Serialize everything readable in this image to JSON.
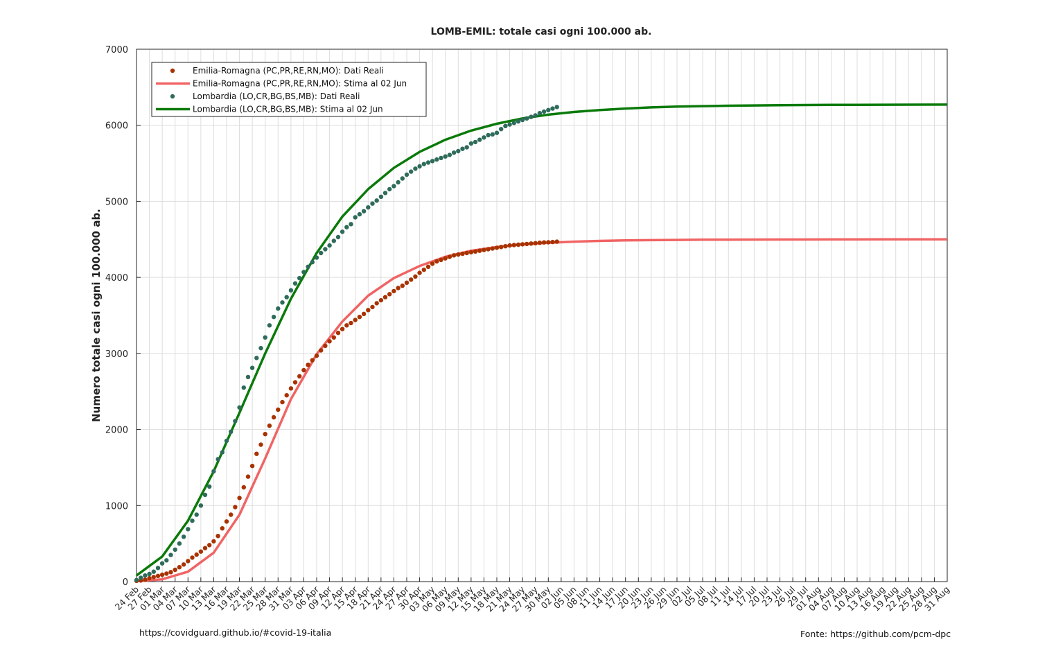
{
  "chart_data": {
    "type": "line",
    "title": "LOMB-EMIL: totale casi ogni 100.000 ab.",
    "ylabel": "Numero totale casi ogni 100.000 ab.",
    "xlabel": "",
    "ylim": [
      0,
      7000
    ],
    "yticks": [
      0,
      1000,
      2000,
      3000,
      4000,
      5000,
      6000,
      7000
    ],
    "xlim": [
      "2020-02-24",
      "2020-08-31"
    ],
    "xtick_labels": [
      "24 Feb",
      "27 Feb",
      "01 Mar",
      "04 Mar",
      "07 Mar",
      "10 Mar",
      "13 Mar",
      "16 Mar",
      "19 Mar",
      "22 Mar",
      "25 Mar",
      "28 Mar",
      "31 Mar",
      "03 Apr",
      "06 Apr",
      "09 Apr",
      "12 Apr",
      "15 Apr",
      "18 Apr",
      "21 Apr",
      "24 Apr",
      "27 Apr",
      "30 Apr",
      "03 May",
      "06 May",
      "09 May",
      "12 May",
      "15 May",
      "18 May",
      "21 May",
      "24 May",
      "27 May",
      "30 May",
      "02 Jun",
      "05 Jun",
      "08 Jun",
      "11 Jun",
      "14 Jun",
      "17 Jun",
      "20 Jun",
      "23 Jun",
      "26 Jun",
      "29 Jun",
      "02 Jul",
      "05 Jul",
      "08 Jul",
      "11 Jul",
      "14 Jul",
      "17 Jul",
      "20 Jul",
      "23 Jul",
      "26 Jul",
      "29 Jul",
      "01 Aug",
      "04 Aug",
      "07 Aug",
      "10 Aug",
      "13 Aug",
      "16 Aug",
      "19 Aug",
      "22 Aug",
      "25 Aug",
      "28 Aug",
      "31 Aug"
    ],
    "grid": true,
    "legend_position": "top-left",
    "series": [
      {
        "name": "Emilia-Romagna (PC,PR,RE,RN,MO): Dati Reali",
        "kind": "points",
        "color": "#a83200",
        "x": [
          "2020-02-24",
          "2020-02-25",
          "2020-02-26",
          "2020-02-27",
          "2020-02-28",
          "2020-02-29",
          "2020-03-01",
          "2020-03-02",
          "2020-03-03",
          "2020-03-04",
          "2020-03-05",
          "2020-03-06",
          "2020-03-07",
          "2020-03-08",
          "2020-03-09",
          "2020-03-10",
          "2020-03-11",
          "2020-03-12",
          "2020-03-13",
          "2020-03-14",
          "2020-03-15",
          "2020-03-16",
          "2020-03-17",
          "2020-03-18",
          "2020-03-19",
          "2020-03-20",
          "2020-03-21",
          "2020-03-22",
          "2020-03-23",
          "2020-03-24",
          "2020-03-25",
          "2020-03-26",
          "2020-03-27",
          "2020-03-28",
          "2020-03-29",
          "2020-03-30",
          "2020-03-31",
          "2020-04-01",
          "2020-04-02",
          "2020-04-03",
          "2020-04-04",
          "2020-04-05",
          "2020-04-06",
          "2020-04-07",
          "2020-04-08",
          "2020-04-09",
          "2020-04-10",
          "2020-04-11",
          "2020-04-12",
          "2020-04-13",
          "2020-04-14",
          "2020-04-15",
          "2020-04-16",
          "2020-04-17",
          "2020-04-18",
          "2020-04-19",
          "2020-04-20",
          "2020-04-21",
          "2020-04-22",
          "2020-04-23",
          "2020-04-24",
          "2020-04-25",
          "2020-04-26",
          "2020-04-27",
          "2020-04-28",
          "2020-04-29",
          "2020-04-30",
          "2020-05-01",
          "2020-05-02",
          "2020-05-03",
          "2020-05-04",
          "2020-05-05",
          "2020-05-06",
          "2020-05-07",
          "2020-05-08",
          "2020-05-09",
          "2020-05-10",
          "2020-05-11",
          "2020-05-12",
          "2020-05-13",
          "2020-05-14",
          "2020-05-15",
          "2020-05-16",
          "2020-05-17",
          "2020-05-18",
          "2020-05-19",
          "2020-05-20",
          "2020-05-21",
          "2020-05-22",
          "2020-05-23",
          "2020-05-24",
          "2020-05-25",
          "2020-05-26",
          "2020-05-27",
          "2020-05-28",
          "2020-05-29",
          "2020-05-30",
          "2020-05-31",
          "2020-06-01"
        ],
        "y": [
          10,
          15,
          25,
          45,
          60,
          75,
          90,
          105,
          125,
          155,
          190,
          225,
          270,
          315,
          355,
          395,
          440,
          480,
          530,
          600,
          700,
          790,
          880,
          980,
          1100,
          1240,
          1380,
          1520,
          1680,
          1800,
          1940,
          2050,
          2160,
          2260,
          2360,
          2450,
          2540,
          2620,
          2700,
          2780,
          2850,
          2910,
          2970,
          3040,
          3100,
          3160,
          3210,
          3270,
          3320,
          3370,
          3400,
          3440,
          3480,
          3520,
          3570,
          3610,
          3660,
          3700,
          3740,
          3780,
          3820,
          3860,
          3890,
          3930,
          3970,
          4010,
          4060,
          4100,
          4140,
          4180,
          4210,
          4230,
          4250,
          4270,
          4290,
          4300,
          4310,
          4320,
          4330,
          4340,
          4350,
          4360,
          4370,
          4380,
          4390,
          4400,
          4410,
          4420,
          4425,
          4430,
          4435,
          4440,
          4445,
          4450,
          4455,
          4460,
          4462,
          4465,
          4470
        ]
      },
      {
        "name": "Emilia-Romagna (PC,PR,RE,RN,MO): Stima al 02 Jun",
        "kind": "line",
        "color": "#f06464",
        "x": [
          "2020-02-24",
          "2020-03-01",
          "2020-03-07",
          "2020-03-13",
          "2020-03-19",
          "2020-03-25",
          "2020-03-31",
          "2020-04-06",
          "2020-04-12",
          "2020-04-18",
          "2020-04-24",
          "2020-04-30",
          "2020-05-06",
          "2020-05-12",
          "2020-05-18",
          "2020-05-24",
          "2020-05-30",
          "2020-06-05",
          "2020-06-11",
          "2020-06-17",
          "2020-06-23",
          "2020-06-29",
          "2020-07-05",
          "2020-07-11",
          "2020-07-17",
          "2020-07-23",
          "2020-07-29",
          "2020-08-04",
          "2020-08-10",
          "2020-08-16",
          "2020-08-22",
          "2020-08-31"
        ],
        "y": [
          5,
          30,
          130,
          380,
          880,
          1620,
          2400,
          2990,
          3420,
          3760,
          3990,
          4150,
          4270,
          4350,
          4400,
          4435,
          4455,
          4470,
          4480,
          4487,
          4490,
          4493,
          4495,
          4496,
          4497,
          4498,
          4498,
          4499,
          4499,
          4500,
          4500,
          4500
        ]
      },
      {
        "name": "Lombardia (LO,CR,BG,BS,MB): Dati Reali",
        "kind": "points",
        "color": "#2e6b5a",
        "x": [
          "2020-02-24",
          "2020-02-25",
          "2020-02-26",
          "2020-02-27",
          "2020-02-28",
          "2020-02-29",
          "2020-03-01",
          "2020-03-02",
          "2020-03-03",
          "2020-03-04",
          "2020-03-05",
          "2020-03-06",
          "2020-03-07",
          "2020-03-08",
          "2020-03-09",
          "2020-03-10",
          "2020-03-11",
          "2020-03-12",
          "2020-03-13",
          "2020-03-14",
          "2020-03-15",
          "2020-03-16",
          "2020-03-17",
          "2020-03-18",
          "2020-03-19",
          "2020-03-20",
          "2020-03-21",
          "2020-03-22",
          "2020-03-23",
          "2020-03-24",
          "2020-03-25",
          "2020-03-26",
          "2020-03-27",
          "2020-03-28",
          "2020-03-29",
          "2020-03-30",
          "2020-03-31",
          "2020-04-01",
          "2020-04-02",
          "2020-04-03",
          "2020-04-04",
          "2020-04-05",
          "2020-04-06",
          "2020-04-07",
          "2020-04-08",
          "2020-04-09",
          "2020-04-10",
          "2020-04-11",
          "2020-04-12",
          "2020-04-13",
          "2020-04-14",
          "2020-04-15",
          "2020-04-16",
          "2020-04-17",
          "2020-04-18",
          "2020-04-19",
          "2020-04-20",
          "2020-04-21",
          "2020-04-22",
          "2020-04-23",
          "2020-04-24",
          "2020-04-25",
          "2020-04-26",
          "2020-04-27",
          "2020-04-28",
          "2020-04-29",
          "2020-04-30",
          "2020-05-01",
          "2020-05-02",
          "2020-05-03",
          "2020-05-04",
          "2020-05-05",
          "2020-05-06",
          "2020-05-07",
          "2020-05-08",
          "2020-05-09",
          "2020-05-10",
          "2020-05-11",
          "2020-05-12",
          "2020-05-13",
          "2020-05-14",
          "2020-05-15",
          "2020-05-16",
          "2020-05-17",
          "2020-05-18",
          "2020-05-19",
          "2020-05-20",
          "2020-05-21",
          "2020-05-22",
          "2020-05-23",
          "2020-05-24",
          "2020-05-25",
          "2020-05-26",
          "2020-05-27",
          "2020-05-28",
          "2020-05-29",
          "2020-05-30",
          "2020-05-31",
          "2020-06-01"
        ],
        "y": [
          20,
          50,
          80,
          100,
          130,
          180,
          240,
          280,
          350,
          420,
          500,
          590,
          690,
          800,
          880,
          1000,
          1140,
          1250,
          1450,
          1610,
          1700,
          1850,
          1970,
          2110,
          2290,
          2550,
          2690,
          2810,
          2940,
          3070,
          3210,
          3370,
          3480,
          3590,
          3670,
          3740,
          3830,
          3920,
          3990,
          4070,
          4140,
          4200,
          4260,
          4320,
          4370,
          4420,
          4480,
          4530,
          4600,
          4660,
          4700,
          4790,
          4830,
          4870,
          4920,
          4970,
          5010,
          5060,
          5110,
          5160,
          5200,
          5250,
          5300,
          5350,
          5390,
          5430,
          5460,
          5490,
          5510,
          5530,
          5550,
          5570,
          5590,
          5610,
          5640,
          5660,
          5690,
          5710,
          5760,
          5780,
          5810,
          5840,
          5870,
          5880,
          5900,
          5950,
          5990,
          6010,
          6030,
          6050,
          6070,
          6090,
          6110,
          6130,
          6160,
          6180,
          6200,
          6220,
          6240
        ]
      },
      {
        "name": "Lombardia (LO,CR,BG,BS,MB): Stima al 02 Jun",
        "kind": "line",
        "color": "#0a7a0a",
        "x": [
          "2020-02-24",
          "2020-03-01",
          "2020-03-07",
          "2020-03-13",
          "2020-03-19",
          "2020-03-25",
          "2020-03-31",
          "2020-04-06",
          "2020-04-12",
          "2020-04-18",
          "2020-04-24",
          "2020-04-30",
          "2020-05-06",
          "2020-05-12",
          "2020-05-18",
          "2020-05-24",
          "2020-05-30",
          "2020-06-05",
          "2020-06-11",
          "2020-06-17",
          "2020-06-23",
          "2020-06-29",
          "2020-07-05",
          "2020-07-11",
          "2020-07-17",
          "2020-07-23",
          "2020-07-29",
          "2020-08-04",
          "2020-08-10",
          "2020-08-16",
          "2020-08-22",
          "2020-08-31"
        ],
        "y": [
          80,
          330,
          800,
          1450,
          2220,
          3000,
          3720,
          4320,
          4800,
          5160,
          5440,
          5650,
          5810,
          5930,
          6020,
          6090,
          6140,
          6175,
          6200,
          6220,
          6235,
          6245,
          6252,
          6257,
          6261,
          6264,
          6266,
          6268,
          6269,
          6270,
          6271,
          6272
        ]
      }
    ]
  },
  "footer": {
    "left": "https://covidguard.github.io/#covid-19-italia",
    "right": "Fonte: https://github.com/pcm-dpc"
  }
}
